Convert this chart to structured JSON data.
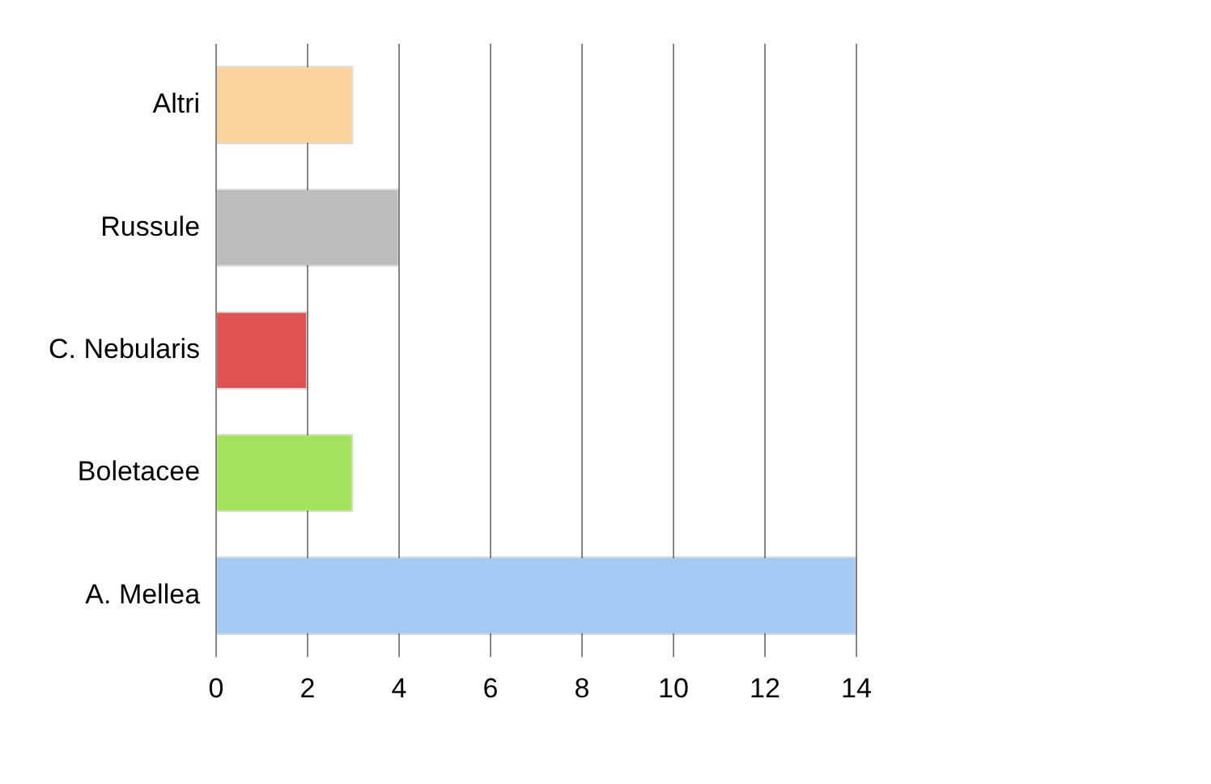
{
  "chart_data": {
    "type": "bar",
    "orientation": "horizontal",
    "categories": [
      "Altri",
      "Russule",
      "C. Nebularis",
      "Boletacee",
      "A. Mellea"
    ],
    "values": [
      3,
      4,
      2,
      3,
      14
    ],
    "colors": [
      "#fbd39c",
      "#bdbdbd",
      "#e05252",
      "#a6e35c",
      "#a3cbf5"
    ],
    "xlim": [
      0,
      14
    ],
    "xticks": [
      0,
      2,
      4,
      6,
      8,
      10,
      12,
      14
    ],
    "grid": "x",
    "legend": false
  }
}
